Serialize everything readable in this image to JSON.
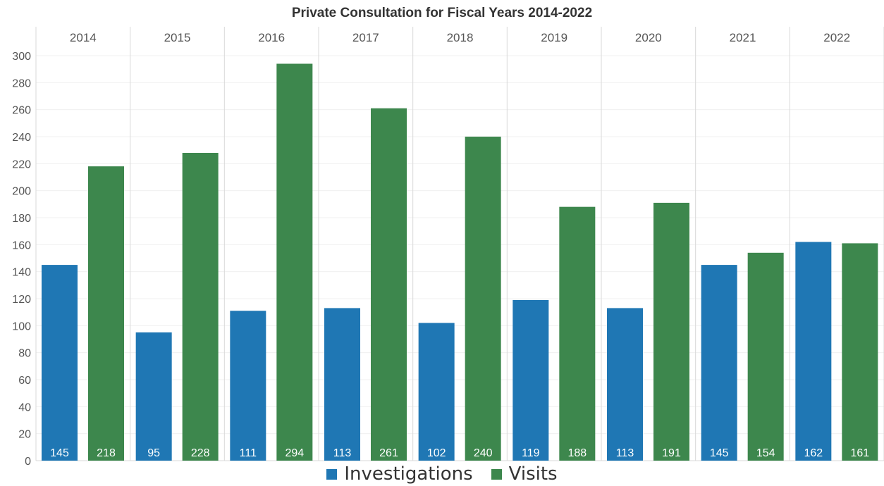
{
  "chart_data": {
    "type": "bar",
    "title": "Private Consultation for Fiscal Years 2014-2022",
    "categories": [
      "2014",
      "2015",
      "2016",
      "2017",
      "2018",
      "2019",
      "2020",
      "2021",
      "2022"
    ],
    "series": [
      {
        "name": "Investigations",
        "color": "#1f77b4",
        "values": [
          145,
          95,
          111,
          113,
          102,
          119,
          113,
          145,
          162
        ]
      },
      {
        "name": "Visits",
        "color": "#3d874d",
        "values": [
          218,
          228,
          294,
          261,
          240,
          188,
          191,
          154,
          161
        ]
      }
    ],
    "ylim": [
      0,
      300
    ],
    "yticks": [
      0,
      20,
      40,
      60,
      80,
      100,
      120,
      140,
      160,
      180,
      200,
      220,
      240,
      260,
      280,
      300
    ],
    "grid": true,
    "legend_position": "bottom-center",
    "data_labels_position": "inside-base"
  }
}
